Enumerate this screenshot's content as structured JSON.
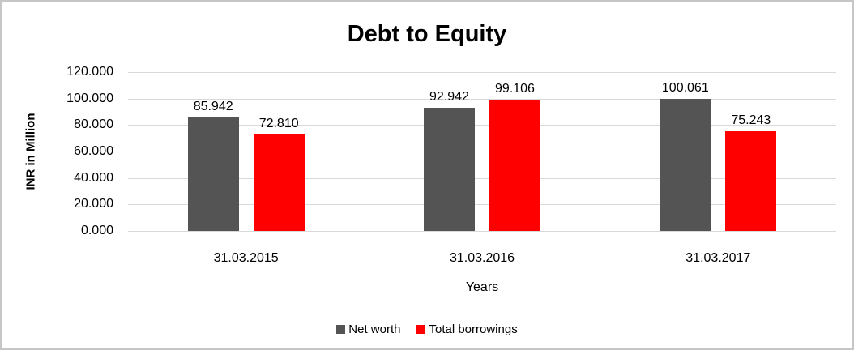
{
  "chart_data": {
    "type": "bar",
    "title": "Debt to Equity",
    "xlabel": "Years",
    "ylabel": "INR in Million",
    "categories": [
      "31.03.2015",
      "31.03.2016",
      "31.03.2017"
    ],
    "series": [
      {
        "name": "Net worth",
        "color": "#545454",
        "values": [
          85.942,
          92.942,
          100.061
        ],
        "value_labels": [
          "85.942",
          "92.942",
          "100.061"
        ]
      },
      {
        "name": "Total borrowings",
        "color": "#ff0000",
        "values": [
          72.81,
          99.106,
          75.243
        ],
        "value_labels": [
          "72.810",
          "99.106",
          "75.243"
        ]
      }
    ],
    "ylim": [
      0,
      120
    ],
    "ytick_step": 20,
    "ytick_labels": [
      "120.000",
      "100.000",
      "80.000",
      "60.000",
      "40.000",
      "20.000",
      "0.000"
    ],
    "grid": true,
    "legend_position": "bottom"
  },
  "colors": {
    "gridline": "#d9d9d9",
    "text": "#000000"
  }
}
